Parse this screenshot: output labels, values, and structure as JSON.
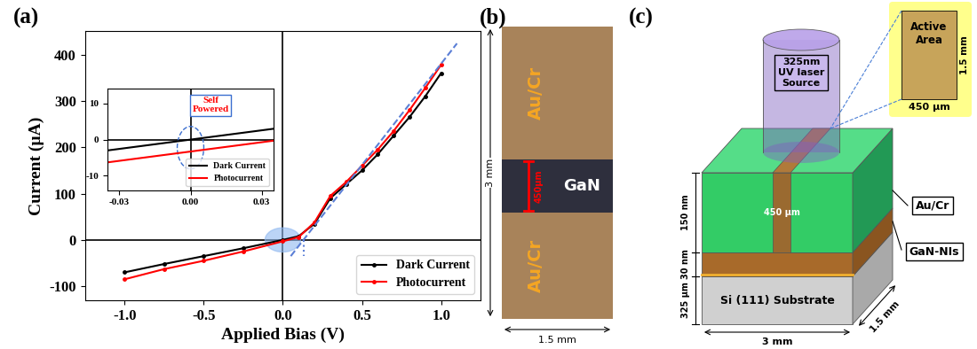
{
  "panel_labels": [
    "(a)",
    "(b)",
    "(c)"
  ],
  "chart_data": [
    {
      "type": "line",
      "x_label": "Applied Bias (V)",
      "y_label": "Current (µA)",
      "xlim": [
        -1.25,
        1.25
      ],
      "ylim": [
        -130,
        450
      ],
      "xticks": [
        -1.0,
        -0.5,
        0.0,
        0.5,
        1.0
      ],
      "yticks": [
        -100,
        0,
        100,
        200,
        300,
        400
      ],
      "legend": "lower right",
      "x": [
        -1.0,
        -0.75,
        -0.5,
        -0.25,
        0.0,
        0.1,
        0.2,
        0.3,
        0.4,
        0.5,
        0.6,
        0.7,
        0.8,
        0.9,
        1.0
      ],
      "series": [
        {
          "name": "Dark Current",
          "color": "#000000",
          "marker": "o",
          "line_style": "solid",
          "values": [
            -70,
            -52,
            -35,
            -18,
            0,
            8,
            35,
            90,
            120,
            150,
            185,
            225,
            265,
            310,
            360
          ]
        },
        {
          "name": "Photocurrent",
          "color": "#ff0000",
          "marker": "o",
          "line_style": "solid",
          "values": [
            -85,
            -63,
            -45,
            -25,
            -3,
            6,
            38,
            95,
            125,
            160,
            195,
            235,
            280,
            328,
            378
          ]
        },
        {
          "color": "#5b7fd6",
          "line_style": "dashed",
          "x": [
            0.05,
            1.1
          ],
          "values": [
            -35,
            424
          ]
        },
        {
          "color": "#5b7fd6",
          "line_style": "dotted",
          "x": [
            0.13,
            0.13
          ],
          "values": [
            0,
            -35
          ]
        }
      ]
    },
    {
      "type": "line",
      "xlim": [
        -0.035,
        0.035
      ],
      "ylim": [
        -14,
        14
      ],
      "xticks": [
        {
          "value": -0.03,
          "label": "-0.03"
        },
        {
          "value": 0.0,
          "label": "0.00"
        },
        {
          "value": 0.03,
          "label": "0.03"
        }
      ],
      "yticks": [
        -10,
        0,
        10
      ],
      "legend": "lower right",
      "annotations": [
        "Self\nPowered"
      ],
      "x": [
        -0.035,
        0.035
      ],
      "series": [
        {
          "name": "Dark Current",
          "color": "#000000",
          "line_style": "solid",
          "values": [
            -3.0,
            3.0
          ]
        },
        {
          "name": "Photocurrent",
          "color": "#ff0000",
          "line_style": "solid",
          "values": [
            -6.3,
            -0.3
          ]
        }
      ]
    }
  ],
  "photo": {
    "electrode": "Au/Cr",
    "channel": "GaN",
    "gap": "450µm",
    "height": "3 mm",
    "width": "1.5 mm"
  },
  "schematic": {
    "source": "325nm\nUV laser\nSource",
    "inset": {
      "title": "Active\nArea",
      "width": "450 µm",
      "height": "1.5 mm"
    },
    "layers": [
      {
        "name": "Au/Cr",
        "thickness": "150 nm"
      },
      {
        "name": "GaN-NIs",
        "thickness": "30 nm"
      },
      {
        "name": "Si (111) Substrate",
        "thickness": "325 µm"
      }
    ],
    "gap": "450 µm",
    "length": "3 mm",
    "depth": "1.5 mm"
  }
}
